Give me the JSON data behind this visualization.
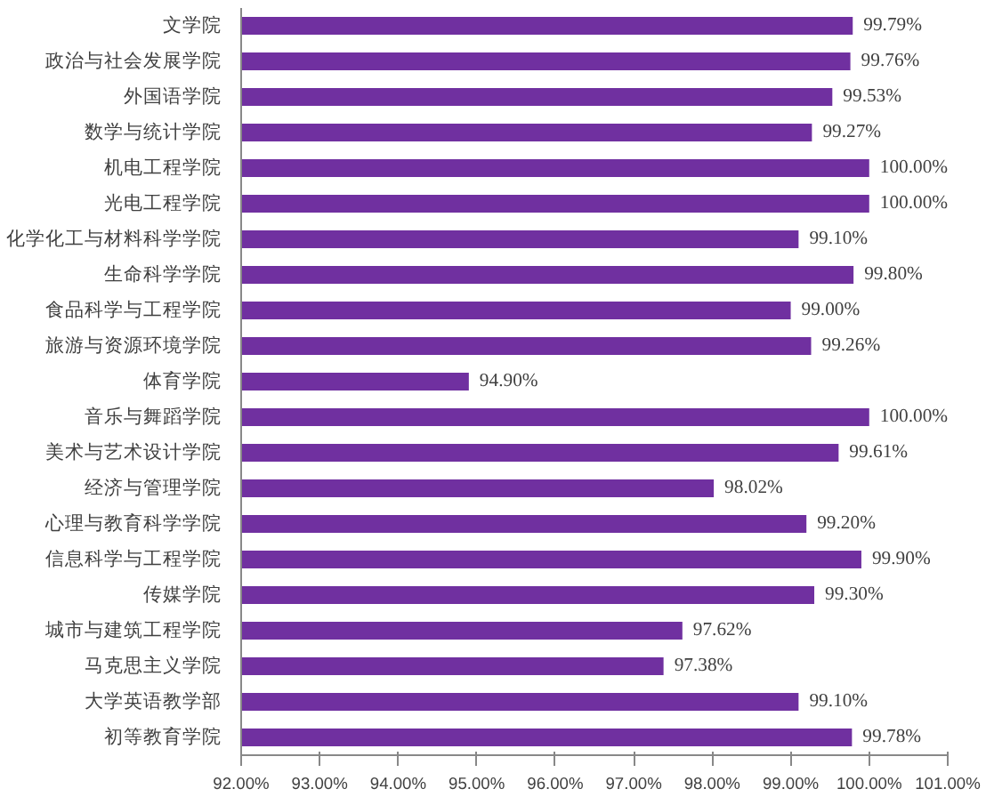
{
  "chart_data": {
    "type": "bar",
    "orientation": "horizontal",
    "color": "#7030a0",
    "categories": [
      "文学院",
      "政治与社会发展学院",
      "外国语学院",
      "数学与统计学院",
      "机电工程学院",
      "光电工程学院",
      "化学化工与材料科学学院",
      "生命科学学院",
      "食品科学与工程学院",
      "旅游与资源环境学院",
      "体育学院",
      "音乐与舞蹈学院",
      "美术与艺术设计学院",
      "经济与管理学院",
      "心理与教育科学学院",
      "信息科学与工程学院",
      "传媒学院",
      "城市与建筑工程学院",
      "马克思主义学院",
      "大学英语教学部",
      "初等教育学院"
    ],
    "values": [
      99.79,
      99.76,
      99.53,
      99.27,
      100.0,
      100.0,
      99.1,
      99.8,
      99.0,
      99.26,
      94.9,
      100.0,
      99.61,
      98.02,
      99.2,
      99.9,
      99.3,
      97.62,
      97.38,
      99.1,
      99.78
    ],
    "value_labels": [
      "99.79%",
      "99.76%",
      "99.53%",
      "99.27%",
      "100.00%",
      "100.00%",
      "99.10%",
      "99.80%",
      "99.00%",
      "99.26%",
      "94.90%",
      "100.00%",
      "99.61%",
      "98.02%",
      "99.20%",
      "99.90%",
      "99.30%",
      "97.62%",
      "97.38%",
      "99.10%",
      "99.78%"
    ],
    "xlim": [
      92,
      101
    ],
    "xticks": [
      {
        "value": 92,
        "label": "92.00%"
      },
      {
        "value": 93,
        "label": "93.00%"
      },
      {
        "value": 94,
        "label": "94.00%"
      },
      {
        "value": 95,
        "label": "95.00%"
      },
      {
        "value": 96,
        "label": "96.00%"
      },
      {
        "value": 97,
        "label": "97.00%"
      },
      {
        "value": 98,
        "label": "98.00%"
      },
      {
        "value": 99,
        "label": "99.00%"
      },
      {
        "value": 100,
        "label": "100.00%"
      },
      {
        "value": 101,
        "label": "101.00%"
      }
    ],
    "grid": false
  }
}
